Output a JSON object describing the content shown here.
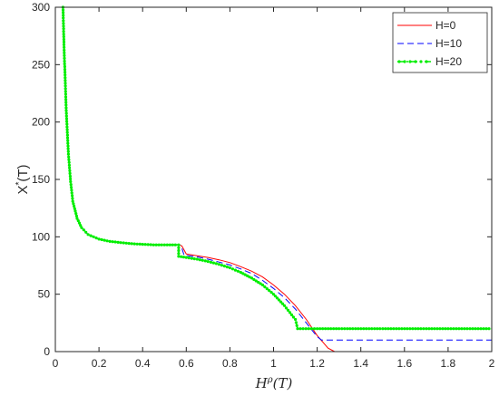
{
  "chart_data": {
    "type": "line",
    "xlabel_main": "H",
    "xlabel_sup": "ρ",
    "xlabel_rest": "(T)",
    "ylabel_main": "X",
    "ylabel_sup": "*",
    "ylabel_rest": "(T)",
    "xlim": [
      0,
      2
    ],
    "ylim": [
      0,
      300
    ],
    "xticks": [
      0,
      0.2,
      0.4,
      0.6,
      0.8,
      1,
      1.2,
      1.4,
      1.6,
      1.8,
      2
    ],
    "xtick_labels": [
      "0",
      "0.2",
      "0.4",
      "0.6",
      "0.8",
      "1",
      "1.2",
      "1.4",
      "1.6",
      "1.8",
      "2"
    ],
    "yticks": [
      0,
      50,
      100,
      150,
      200,
      250,
      300
    ],
    "ytick_labels": [
      "0",
      "50",
      "100",
      "150",
      "200",
      "250",
      "300"
    ],
    "grid": false,
    "legend_position": "top-right",
    "colors": {
      "H=0": "#ff0000",
      "H=10": "#0000ff",
      "H=20": "#00ee00"
    },
    "series": [
      {
        "name": "H=0",
        "style": "solid",
        "points": [
          [
            0.035,
            300
          ],
          [
            0.04,
            265
          ],
          [
            0.05,
            210
          ],
          [
            0.06,
            172
          ],
          [
            0.07,
            148
          ],
          [
            0.08,
            131
          ],
          [
            0.1,
            116
          ],
          [
            0.12,
            108
          ],
          [
            0.15,
            102
          ],
          [
            0.2,
            98
          ],
          [
            0.25,
            96
          ],
          [
            0.3,
            95
          ],
          [
            0.35,
            94
          ],
          [
            0.4,
            93.5
          ],
          [
            0.45,
            93
          ],
          [
            0.5,
            93
          ],
          [
            0.55,
            93
          ],
          [
            0.57,
            93
          ],
          [
            0.58,
            92
          ],
          [
            0.6,
            85
          ],
          [
            0.65,
            83.5
          ],
          [
            0.7,
            82
          ],
          [
            0.75,
            80
          ],
          [
            0.8,
            77.5
          ],
          [
            0.85,
            74
          ],
          [
            0.9,
            70
          ],
          [
            0.95,
            65
          ],
          [
            1.0,
            58
          ],
          [
            1.05,
            50
          ],
          [
            1.1,
            40
          ],
          [
            1.15,
            28
          ],
          [
            1.2,
            14
          ],
          [
            1.25,
            3
          ],
          [
            1.28,
            0
          ],
          [
            1.4,
            0
          ],
          [
            1.6,
            0
          ],
          [
            1.8,
            0
          ],
          [
            2.0,
            0
          ]
        ]
      },
      {
        "name": "H=10",
        "style": "dashed",
        "points": [
          [
            0.035,
            300
          ],
          [
            0.04,
            265
          ],
          [
            0.05,
            210
          ],
          [
            0.06,
            172
          ],
          [
            0.07,
            148
          ],
          [
            0.08,
            131
          ],
          [
            0.1,
            116
          ],
          [
            0.12,
            108
          ],
          [
            0.15,
            102
          ],
          [
            0.2,
            98
          ],
          [
            0.25,
            96
          ],
          [
            0.3,
            95
          ],
          [
            0.35,
            94
          ],
          [
            0.4,
            93.5
          ],
          [
            0.45,
            93
          ],
          [
            0.5,
            93
          ],
          [
            0.55,
            93
          ],
          [
            0.57,
            93
          ],
          [
            0.58,
            90
          ],
          [
            0.59,
            84
          ],
          [
            0.65,
            82.5
          ],
          [
            0.7,
            80.5
          ],
          [
            0.75,
            78
          ],
          [
            0.8,
            75.5
          ],
          [
            0.85,
            72
          ],
          [
            0.9,
            68
          ],
          [
            0.95,
            62
          ],
          [
            1.0,
            55
          ],
          [
            1.05,
            47
          ],
          [
            1.1,
            37
          ],
          [
            1.15,
            25
          ],
          [
            1.2,
            13
          ],
          [
            1.22,
            10
          ],
          [
            1.4,
            10
          ],
          [
            1.6,
            10
          ],
          [
            1.8,
            10
          ],
          [
            2.0,
            10
          ]
        ]
      },
      {
        "name": "H=20",
        "style": "dashdot",
        "points": [
          [
            0.035,
            300
          ],
          [
            0.04,
            265
          ],
          [
            0.05,
            210
          ],
          [
            0.06,
            172
          ],
          [
            0.07,
            148
          ],
          [
            0.08,
            131
          ],
          [
            0.1,
            116
          ],
          [
            0.12,
            108
          ],
          [
            0.15,
            102
          ],
          [
            0.2,
            98
          ],
          [
            0.25,
            96
          ],
          [
            0.3,
            95
          ],
          [
            0.35,
            94
          ],
          [
            0.4,
            93.5
          ],
          [
            0.45,
            93
          ],
          [
            0.5,
            93
          ],
          [
            0.55,
            93
          ],
          [
            0.565,
            93
          ],
          [
            0.565,
            83
          ],
          [
            0.6,
            82
          ],
          [
            0.65,
            80.5
          ],
          [
            0.7,
            78.5
          ],
          [
            0.75,
            76
          ],
          [
            0.8,
            73
          ],
          [
            0.85,
            69
          ],
          [
            0.9,
            64
          ],
          [
            0.95,
            58
          ],
          [
            1.0,
            50
          ],
          [
            1.05,
            40
          ],
          [
            1.1,
            28
          ],
          [
            1.11,
            20
          ],
          [
            1.2,
            20
          ],
          [
            1.4,
            20
          ],
          [
            1.6,
            20
          ],
          [
            1.8,
            20
          ],
          [
            2.0,
            20
          ]
        ]
      }
    ]
  }
}
